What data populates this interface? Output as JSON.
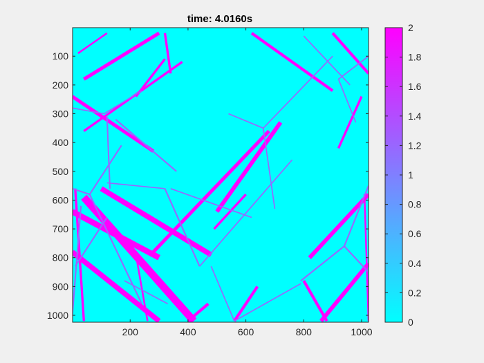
{
  "window": {
    "background": "#f0f0f0"
  },
  "chart_data": {
    "type": "heatmap",
    "title": "time: 4.0160s",
    "xlabel": "",
    "ylabel": "",
    "xlim": [
      1,
      1024
    ],
    "ylim": [
      1,
      1024
    ],
    "y_reversed": true,
    "x_ticks": [
      200,
      400,
      600,
      800,
      1000
    ],
    "y_ticks": [
      100,
      200,
      300,
      400,
      500,
      600,
      700,
      800,
      900,
      1000
    ],
    "colormap": "cool",
    "colormap_start": "#00ffff",
    "colormap_end": "#ff00ff",
    "colorbar": {
      "range": [
        0,
        2
      ],
      "ticks": [
        0,
        0.2,
        0.4,
        0.6,
        0.8,
        1,
        1.2,
        1.4,
        1.6,
        1.8,
        2
      ],
      "tick_labels": [
        "0",
        "0.2",
        "0.4",
        "0.6",
        "0.8",
        "1",
        "1.2",
        "1.4",
        "1.6",
        "1.8",
        "2"
      ],
      "location": "right"
    },
    "background_value": 0,
    "features": [
      {
        "x1": 40,
        "y1": 590,
        "x2": 420,
        "y2": 1020,
        "value": 2,
        "width": 26
      },
      {
        "x1": 0,
        "y1": 780,
        "x2": 300,
        "y2": 1020,
        "value": 2,
        "width": 18
      },
      {
        "x1": 500,
        "y1": 640,
        "x2": 720,
        "y2": 330,
        "value": 2,
        "width": 14
      },
      {
        "x1": 280,
        "y1": 780,
        "x2": 680,
        "y2": 360,
        "value": 2,
        "width": 12
      },
      {
        "x1": 40,
        "y1": 180,
        "x2": 300,
        "y2": 20,
        "value": 2,
        "width": 12
      },
      {
        "x1": 0,
        "y1": 240,
        "x2": 280,
        "y2": 430,
        "value": 2,
        "width": 12
      },
      {
        "x1": 100,
        "y1": 560,
        "x2": 480,
        "y2": 790,
        "value": 2,
        "width": 18
      },
      {
        "x1": 0,
        "y1": 640,
        "x2": 300,
        "y2": 800,
        "value": 2,
        "width": 20
      },
      {
        "x1": 40,
        "y1": 360,
        "x2": 380,
        "y2": 120,
        "value": 2,
        "width": 8
      },
      {
        "x1": 10,
        "y1": 560,
        "x2": 40,
        "y2": 1020,
        "value": 2,
        "width": 8
      },
      {
        "x1": 220,
        "y1": 240,
        "x2": 320,
        "y2": 110,
        "value": 2,
        "width": 8
      },
      {
        "x1": 820,
        "y1": 800,
        "x2": 1024,
        "y2": 580,
        "value": 2,
        "width": 14
      },
      {
        "x1": 860,
        "y1": 1020,
        "x2": 1024,
        "y2": 820,
        "value": 2,
        "width": 14
      },
      {
        "x1": 800,
        "y1": 880,
        "x2": 880,
        "y2": 1020,
        "value": 2,
        "width": 10
      },
      {
        "x1": 620,
        "y1": 20,
        "x2": 900,
        "y2": 220,
        "value": 2,
        "width": 10
      },
      {
        "x1": 900,
        "y1": 20,
        "x2": 1024,
        "y2": 160,
        "value": 2,
        "width": 10
      },
      {
        "x1": 920,
        "y1": 420,
        "x2": 1000,
        "y2": 240,
        "value": 2,
        "width": 8
      },
      {
        "x1": 320,
        "y1": 20,
        "x2": 340,
        "y2": 160,
        "value": 2,
        "width": 8
      },
      {
        "x1": 490,
        "y1": 700,
        "x2": 600,
        "y2": 580,
        "value": 2,
        "width": 8
      },
      {
        "x1": 560,
        "y1": 1020,
        "x2": 640,
        "y2": 900,
        "value": 2,
        "width": 10
      },
      {
        "x1": 400,
        "y1": 1020,
        "x2": 470,
        "y2": 960,
        "value": 2,
        "width": 10
      },
      {
        "x1": 220,
        "y1": 790,
        "x2": 260,
        "y2": 1020,
        "value": 2,
        "width": 6
      },
      {
        "x1": 20,
        "y1": 90,
        "x2": 120,
        "y2": 20,
        "value": 2,
        "width": 6
      },
      {
        "x1": 1010,
        "y1": 580,
        "x2": 1024,
        "y2": 1020,
        "value": 2,
        "width": 6
      },
      {
        "x1": 30,
        "y1": 620,
        "x2": 0,
        "y2": 1000,
        "value": 1.2,
        "width": 5
      },
      {
        "x1": 120,
        "y1": 660,
        "x2": 10,
        "y2": 830,
        "value": 1.2,
        "width": 5
      },
      {
        "x1": 60,
        "y1": 580,
        "x2": 170,
        "y2": 410,
        "value": 1.2,
        "width": 5
      },
      {
        "x1": 110,
        "y1": 300,
        "x2": 240,
        "y2": 220,
        "value": 1.2,
        "width": 4
      },
      {
        "x1": 0,
        "y1": 280,
        "x2": 110,
        "y2": 300,
        "value": 1.2,
        "width": 4
      },
      {
        "x1": 120,
        "y1": 310,
        "x2": 130,
        "y2": 560,
        "value": 1.2,
        "width": 5
      },
      {
        "x1": 0,
        "y1": 560,
        "x2": 60,
        "y2": 580,
        "value": 1.2,
        "width": 5
      },
      {
        "x1": 60,
        "y1": 580,
        "x2": 240,
        "y2": 960,
        "value": 1.2,
        "width": 5
      },
      {
        "x1": 150,
        "y1": 320,
        "x2": 360,
        "y2": 500,
        "value": 1.2,
        "width": 5
      },
      {
        "x1": 320,
        "y1": 560,
        "x2": 440,
        "y2": 830,
        "value": 1.2,
        "width": 5
      },
      {
        "x1": 340,
        "y1": 560,
        "x2": 620,
        "y2": 660,
        "value": 1.2,
        "width": 4
      },
      {
        "x1": 320,
        "y1": 560,
        "x2": 120,
        "y2": 540,
        "value": 1.2,
        "width": 4
      },
      {
        "x1": 440,
        "y1": 830,
        "x2": 760,
        "y2": 460,
        "value": 1.2,
        "width": 4
      },
      {
        "x1": 660,
        "y1": 350,
        "x2": 900,
        "y2": 100,
        "value": 1.2,
        "width": 4
      },
      {
        "x1": 660,
        "y1": 350,
        "x2": 700,
        "y2": 630,
        "value": 1.2,
        "width": 4
      },
      {
        "x1": 540,
        "y1": 300,
        "x2": 660,
        "y2": 350,
        "value": 1.2,
        "width": 4
      },
      {
        "x1": 920,
        "y1": 180,
        "x2": 1024,
        "y2": 100,
        "value": 1.2,
        "width": 4
      },
      {
        "x1": 920,
        "y1": 180,
        "x2": 980,
        "y2": 330,
        "value": 1.2,
        "width": 4
      },
      {
        "x1": 800,
        "y1": 30,
        "x2": 960,
        "y2": 200,
        "value": 1.2,
        "width": 4
      },
      {
        "x1": 480,
        "y1": 830,
        "x2": 560,
        "y2": 1020,
        "value": 1.2,
        "width": 4
      },
      {
        "x1": 940,
        "y1": 760,
        "x2": 1024,
        "y2": 850,
        "value": 1.2,
        "width": 5
      },
      {
        "x1": 790,
        "y1": 880,
        "x2": 940,
        "y2": 760,
        "value": 1.2,
        "width": 5
      },
      {
        "x1": 940,
        "y1": 760,
        "x2": 1024,
        "y2": 550,
        "value": 1.2,
        "width": 5
      },
      {
        "x1": 560,
        "y1": 1020,
        "x2": 790,
        "y2": 890,
        "value": 1.2,
        "width": 4
      },
      {
        "x1": 180,
        "y1": 880,
        "x2": 330,
        "y2": 960,
        "value": 1.2,
        "width": 4
      }
    ]
  }
}
